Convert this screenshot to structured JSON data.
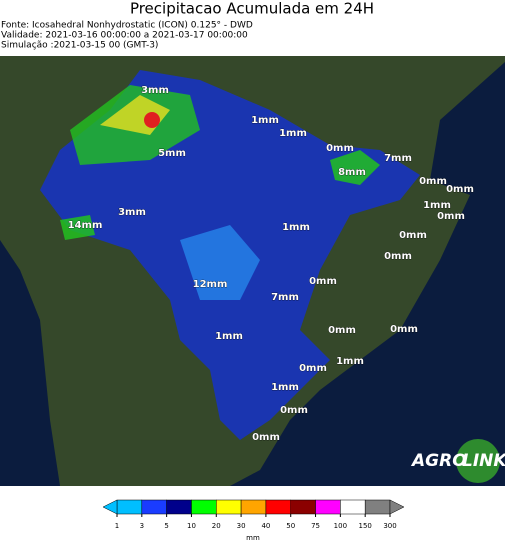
{
  "header": {
    "title": "Precipitacao Acumulada em 24H",
    "lines": [
      "Fonte: Icosahedral Nonhydrostatic (ICON) 0.125° - DWD",
      "Validade: 2021-03-16 00:00:00 a 2021-03-17 00:00:00",
      "Simulação :2021-03-15 00 (GMT-3)"
    ]
  },
  "map": {
    "labels": [
      "3mm",
      "1mm",
      "1mm",
      "0mm",
      "7mm",
      "8mm",
      "5mm",
      "0mm",
      "0mm",
      "1mm",
      "0mm",
      "3mm",
      "14mm",
      "1mm",
      "0mm",
      "0mm",
      "0mm",
      "12mm",
      "7mm",
      "1mm",
      "0mm",
      "0mm",
      "1mm",
      "0mm",
      "1mm",
      "0mm",
      "0mm"
    ],
    "logo": [
      "AGRO",
      "LINK"
    ]
  },
  "colorbar": {
    "ticks": [
      1,
      3,
      5,
      10,
      20,
      30,
      40,
      50,
      75,
      100,
      150,
      300
    ],
    "colors": [
      "#00bfff",
      "#1a3cff",
      "#00008b",
      "#00ff00",
      "#ffff00",
      "#ffa500",
      "#ff0000",
      "#8b0000",
      "#ff00ff",
      "#ffffff",
      "#808080"
    ],
    "unit": "mm"
  }
}
